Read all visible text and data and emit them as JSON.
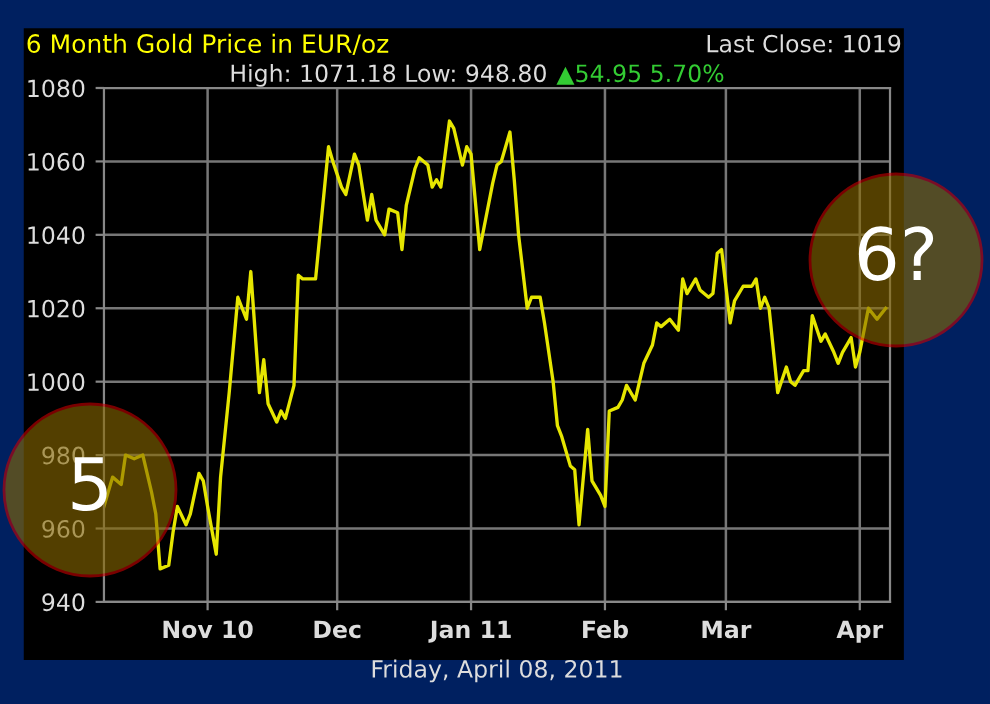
{
  "chart_data": {
    "type": "line",
    "title": "6 Month Gold Price in EUR/oz",
    "subtitle": "High: 1071.18 Low: 948.80",
    "xlabel": "Friday, April 08, 2011",
    "annotations": [
      "Last Close: 1019",
      "▲54.95 5.70%",
      "5",
      "6?"
    ],
    "x": [
      "2010-10-08",
      "2010-10-10",
      "2010-10-12",
      "2010-10-13",
      "2010-10-15",
      "2010-10-17",
      "2010-10-19",
      "2010-10-20",
      "2010-10-21",
      "2010-10-23",
      "2010-10-24",
      "2010-10-25",
      "2010-10-27",
      "2010-10-28",
      "2010-10-30",
      "2010-10-31",
      "2010-11-01",
      "2010-11-03",
      "2010-11-04",
      "2010-11-06",
      "2010-11-08",
      "2010-11-10",
      "2010-11-11",
      "2010-11-13",
      "2010-11-14",
      "2010-11-15",
      "2010-11-17",
      "2010-11-18",
      "2010-11-19",
      "2010-11-21",
      "2010-11-22",
      "2010-11-23",
      "2010-11-26",
      "2010-11-29",
      "2010-11-30",
      "2010-12-02",
      "2010-12-03",
      "2010-12-05",
      "2010-12-06",
      "2010-12-08",
      "2010-12-09",
      "2010-12-10",
      "2010-12-12",
      "2010-12-13",
      "2010-12-15",
      "2010-12-16",
      "2010-12-17",
      "2010-12-19",
      "2010-12-20",
      "2010-12-22",
      "2010-12-23",
      "2010-12-24",
      "2010-12-25",
      "2010-12-27",
      "2010-12-28",
      "2010-12-30",
      "2010-12-31",
      "2011-01-01",
      "2011-01-03",
      "2011-01-06",
      "2011-01-07",
      "2011-01-08",
      "2011-01-10",
      "2011-01-11",
      "2011-01-12",
      "2011-01-14",
      "2011-01-15",
      "2011-01-17",
      "2011-01-18",
      "2011-01-20",
      "2011-01-21",
      "2011-01-22",
      "2011-01-24",
      "2011-01-25",
      "2011-01-26",
      "2011-01-28",
      "2011-01-29",
      "2011-01-31",
      "2011-02-01",
      "2011-02-02",
      "2011-02-04",
      "2011-02-05",
      "2011-02-06",
      "2011-02-08",
      "2011-02-09",
      "2011-02-10",
      "2011-02-12",
      "2011-02-13",
      "2011-02-14",
      "2011-02-16",
      "2011-02-18",
      "2011-02-19",
      "2011-02-20",
      "2011-02-22",
      "2011-02-23",
      "2011-02-25",
      "2011-02-26",
      "2011-02-27",
      "2011-02-28",
      "2011-03-02",
      "2011-03-03",
      "2011-03-05",
      "2011-03-07",
      "2011-03-08",
      "2011-03-09",
      "2011-03-10",
      "2011-03-11",
      "2011-03-13",
      "2011-03-15",
      "2011-03-16",
      "2011-03-17",
      "2011-03-19",
      "2011-03-20",
      "2011-03-21",
      "2011-03-23",
      "2011-03-24",
      "2011-03-26",
      "2011-03-27",
      "2011-03-28",
      "2011-03-30",
      "2011-03-31",
      "2011-04-01",
      "2011-04-03",
      "2011-04-05",
      "2011-04-07"
    ],
    "series": [
      {
        "color": "#e6e600",
        "values": [
          966,
          974,
          972,
          980,
          979,
          980,
          970,
          964,
          949,
          950,
          959,
          966,
          961,
          964,
          975,
          973,
          966,
          953,
          974,
          997,
          1023,
          1017,
          1030,
          997,
          1006,
          994,
          989,
          992,
          990,
          999,
          1029,
          1028,
          1028,
          1064,
          1060,
          1053,
          1051,
          1062,
          1059,
          1044,
          1051,
          1044,
          1040,
          1047,
          1046,
          1036,
          1048,
          1058,
          1061,
          1059,
          1053,
          1055,
          1053,
          1071,
          1069,
          1059,
          1064,
          1062,
          1036,
          1054,
          1059,
          1060,
          1068,
          1055,
          1040,
          1020,
          1023,
          1023,
          1016,
          1000,
          988,
          985,
          977,
          976,
          961,
          987,
          973,
          969,
          966,
          992,
          993,
          995,
          999,
          995,
          1000,
          1005,
          1010,
          1016,
          1015,
          1017,
          1014,
          1028,
          1024,
          1028,
          1025,
          1023,
          1024,
          1035,
          1036,
          1016,
          1022,
          1026,
          1026,
          1028,
          1020,
          1023,
          1020,
          997,
          1004,
          1000,
          999,
          1003,
          1003,
          1018,
          1011,
          1013,
          1008,
          1005,
          1008,
          1012,
          1004,
          1008,
          1020,
          1017,
          1020
        ]
      }
    ],
    "xlim": [
      "2010-10-08",
      "2011-04-08"
    ],
    "xticks": [
      {
        "value": "2010-11-01",
        "label": "Nov 10"
      },
      {
        "value": "2010-12-01",
        "label": "Dec"
      },
      {
        "value": "2011-01-01",
        "label": "Jan 11"
      },
      {
        "value": "2011-02-01",
        "label": "Feb"
      },
      {
        "value": "2011-03-01",
        "label": "Mar"
      },
      {
        "value": "2011-04-01",
        "label": "Apr"
      }
    ],
    "ylim": [
      940,
      1080
    ],
    "yticks": [
      940,
      960,
      980,
      1000,
      1020,
      1040,
      1060,
      1080
    ],
    "grid": true,
    "legend": false,
    "marker": "none",
    "line_style": "solid"
  }
}
